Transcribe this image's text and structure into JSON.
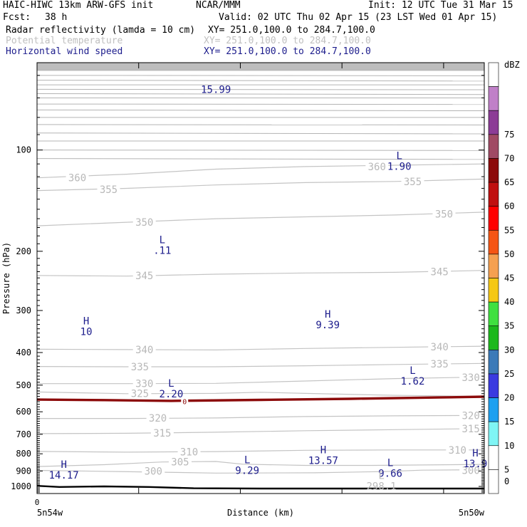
{
  "header": {
    "model": "HAIC-HIWC 13km ARW-GFS init",
    "org": "NCAR/MMM",
    "init": "Init: 12 UTC Tue 31 Mar 15",
    "fcst_label": "Fcst:",
    "fcst_value": "38 h",
    "valid": "Valid: 02 UTC Thu 02 Apr 15 (23 LST Wed 01 Apr 15)",
    "fields": [
      {
        "name": "Radar reflectivity (lamda = 10 cm)",
        "xy": "XY= 251.0,100.0 to 284.7,100.0",
        "color": "#000000"
      },
      {
        "name": "Potential temperature",
        "xy": "XY= 251.0,100.0 to 284.7,100.0",
        "color": "#c0c0c0"
      },
      {
        "name": "Horizontal wind speed",
        "xy": "XY= 251.0,100.0 to 284.7,100.0",
        "color": "#1c1c8c"
      }
    ]
  },
  "axes": {
    "ylabel": "Pressure (hPa)",
    "xlabel": "Distance (km)",
    "x_left_label": "5n54w",
    "x_right_label": "5n50w",
    "x_zero_label": "0"
  },
  "colorbar": {
    "unit": "dBZ",
    "levels": [
      {
        "value": "0",
        "color": "#ffffff"
      },
      {
        "value": "5",
        "color": "#ffffff"
      },
      {
        "value": "10",
        "color": "#7ff5f5"
      },
      {
        "value": "15",
        "color": "#1ea0f0"
      },
      {
        "value": "20",
        "color": "#3a3ae0"
      },
      {
        "value": "25",
        "color": "#3c7ab8"
      },
      {
        "value": "30",
        "color": "#1cb81c"
      },
      {
        "value": "35",
        "color": "#40e040"
      },
      {
        "value": "40",
        "color": "#f5c814"
      },
      {
        "value": "45",
        "color": "#f5a050"
      },
      {
        "value": "50",
        "color": "#f55514"
      },
      {
        "value": "55",
        "color": "#ff0000"
      },
      {
        "value": "60",
        "color": "#c01010"
      },
      {
        "value": "65",
        "color": "#8c0a0a"
      },
      {
        "value": "70",
        "color": "#a04a64"
      },
      {
        "value": "75",
        "color": "#8c3c96"
      },
      {
        "value": "",
        "color": "#c080c8"
      },
      {
        "value": "",
        "color": "#ffffff"
      }
    ]
  },
  "chart_data": {
    "type": "line",
    "title": "Radar reflectivity (lamda = 10 cm)",
    "y_scale": "log",
    "y_ticks": [
      100,
      200,
      300,
      400,
      500,
      600,
      700,
      800,
      900,
      1000
    ],
    "ylim": [
      1050,
      55
    ],
    "x_ticks_count": 5,
    "theta_isentropes": [
      {
        "label": "300",
        "points": [
          [
            0,
            896
          ],
          [
            0.18,
            903
          ],
          [
            0.4,
            913
          ],
          [
            0.62,
            911
          ],
          [
            0.78,
            903
          ],
          [
            0.86,
            895
          ],
          [
            1,
            892
          ]
        ],
        "label_positions": [
          [
            0.26,
            900
          ],
          [
            0.97,
            897
          ]
        ]
      },
      {
        "label": "305",
        "points": [
          [
            0,
            873
          ],
          [
            0.15,
            862
          ],
          [
            0.28,
            846
          ],
          [
            0.4,
            843
          ],
          [
            0.46,
            859
          ],
          [
            0.6,
            866
          ],
          [
            0.75,
            866
          ],
          [
            1,
            860
          ]
        ],
        "label_positions": [
          [
            0.32,
            845
          ]
        ]
      },
      {
        "label": "310",
        "points": [
          [
            0,
            787
          ],
          [
            0.2,
            791
          ],
          [
            0.4,
            788
          ],
          [
            0.6,
            781
          ],
          [
            0.8,
            779
          ],
          [
            1,
            779
          ]
        ],
        "label_positions": [
          [
            0.34,
            789
          ],
          [
            0.94,
            779
          ]
        ]
      },
      {
        "label": "315",
        "points": [
          [
            0,
            697
          ],
          [
            0.2,
            695
          ],
          [
            0.4,
            690
          ],
          [
            0.6,
            683
          ],
          [
            0.8,
            678
          ],
          [
            1,
            673
          ]
        ],
        "label_positions": [
          [
            0.28,
            693
          ],
          [
            0.97,
            674
          ]
        ]
      },
      {
        "label": "320",
        "points": [
          [
            0,
            628
          ],
          [
            0.2,
            628
          ],
          [
            0.4,
            626
          ],
          [
            0.6,
            620
          ],
          [
            0.8,
            617
          ],
          [
            1,
            615
          ]
        ],
        "label_positions": [
          [
            0.27,
            627
          ],
          [
            0.97,
            616
          ]
        ]
      },
      {
        "label": "325",
        "points": [
          [
            0,
            524
          ],
          [
            0.2,
            530
          ],
          [
            0.4,
            529
          ],
          [
            0.5,
            525
          ],
          [
            0.6,
            529
          ],
          [
            0.8,
            536
          ],
          [
            1,
            540
          ]
        ],
        "label_positions": [
          [
            0.23,
            529
          ]
        ]
      },
      {
        "label": "330",
        "points": [
          [
            0,
            495
          ],
          [
            0.2,
            495
          ],
          [
            0.4,
            494
          ],
          [
            0.6,
            486
          ],
          [
            0.8,
            478
          ],
          [
            1,
            473
          ]
        ],
        "label_positions": [
          [
            0.24,
            495
          ],
          [
            0.97,
            474
          ]
        ]
      },
      {
        "label": "335",
        "points": [
          [
            0,
            440
          ],
          [
            0.2,
            441
          ],
          [
            0.4,
            441
          ],
          [
            0.6,
            438
          ],
          [
            0.8,
            434
          ],
          [
            1,
            431
          ]
        ],
        "label_positions": [
          [
            0.23,
            441
          ],
          [
            0.9,
            432
          ]
        ]
      },
      {
        "label": "340",
        "points": [
          [
            0,
            391
          ],
          [
            0.2,
            392
          ],
          [
            0.4,
            393
          ],
          [
            0.6,
            389
          ],
          [
            0.8,
            386
          ],
          [
            1,
            383
          ]
        ],
        "label_positions": [
          [
            0.24,
            392
          ],
          [
            0.9,
            385
          ]
        ]
      },
      {
        "label": "345",
        "points": [
          [
            0,
            236
          ],
          [
            0.2,
            237
          ],
          [
            0.4,
            234
          ],
          [
            0.6,
            232
          ],
          [
            0.8,
            231
          ],
          [
            1,
            228
          ]
        ],
        "label_positions": [
          [
            0.24,
            236
          ],
          [
            0.9,
            230
          ]
        ]
      },
      {
        "label": "350",
        "points": [
          [
            0,
            168
          ],
          [
            0.2,
            164
          ],
          [
            0.4,
            160
          ],
          [
            0.6,
            158
          ],
          [
            0.8,
            156
          ],
          [
            1,
            153
          ]
        ],
        "label_positions": [
          [
            0.24,
            164
          ],
          [
            0.91,
            155
          ]
        ]
      },
      {
        "label": "355",
        "points": [
          [
            0,
            132
          ],
          [
            0.2,
            130
          ],
          [
            0.4,
            127
          ],
          [
            0.6,
            125
          ],
          [
            0.8,
            124
          ],
          [
            1,
            122
          ]
        ],
        "label_positions": [
          [
            0.16,
            131
          ],
          [
            0.84,
            124
          ]
        ]
      },
      {
        "label": "360",
        "points": [
          [
            0,
            121
          ],
          [
            0.2,
            118
          ],
          [
            0.4,
            114
          ],
          [
            0.6,
            112
          ],
          [
            0.8,
            111
          ],
          [
            1,
            110
          ]
        ],
        "label_positions": [
          [
            0.09,
            121
          ],
          [
            0.76,
            112
          ]
        ]
      }
    ],
    "upper_isentrope_pressures": [
      58,
      60,
      62,
      64,
      66,
      68,
      70,
      73,
      76,
      80,
      84,
      89,
      94,
      100,
      106
    ],
    "zero_line": {
      "label": "0",
      "points": [
        [
          0,
          552
        ],
        [
          0.15,
          554
        ],
        [
          0.3,
          557
        ],
        [
          0.5,
          553
        ],
        [
          0.7,
          549
        ],
        [
          0.9,
          544
        ],
        [
          1,
          541
        ]
      ],
      "label_position": [
        0.33,
        558
      ]
    },
    "terrain": {
      "points": [
        [
          0,
          996
        ],
        [
          0.05,
          1004
        ],
        [
          0.15,
          1000
        ],
        [
          0.25,
          1004
        ],
        [
          0.35,
          1013
        ],
        [
          0.5,
          1015
        ],
        [
          0.75,
          1015
        ],
        [
          1,
          1015
        ]
      ]
    },
    "wind_extrema": [
      {
        "type": "",
        "value": "15.99",
        "x": 0.4,
        "p": 66
      },
      {
        "type": "L",
        "value": "1.90",
        "x": 0.81,
        "p": 108
      },
      {
        "type": "L",
        "value": ".11",
        "x": 0.28,
        "p": 192
      },
      {
        "type": "H",
        "value": "10",
        "x": 0.11,
        "p": 335
      },
      {
        "type": "H",
        "value": "9.39",
        "x": 0.65,
        "p": 320
      },
      {
        "type": "L",
        "value": "1.62",
        "x": 0.84,
        "p": 470
      },
      {
        "type": "L",
        "value": "2.20",
        "x": 0.3,
        "p": 513
      },
      {
        "type": "H",
        "value": "13.57",
        "x": 0.64,
        "p": 808
      },
      {
        "type": "H",
        "value": "13.9",
        "x": 0.98,
        "p": 827
      },
      {
        "type": "L",
        "value": "9.29",
        "x": 0.47,
        "p": 867
      },
      {
        "type": "L",
        "value": "9.66",
        "x": 0.79,
        "p": 883
      },
      {
        "type": "H",
        "value": "14.17",
        "x": 0.06,
        "p": 895
      }
    ],
    "theta_extrema": [
      {
        "type": "L",
        "value": "298.1",
        "x": 0.77,
        "p": 965
      }
    ]
  }
}
